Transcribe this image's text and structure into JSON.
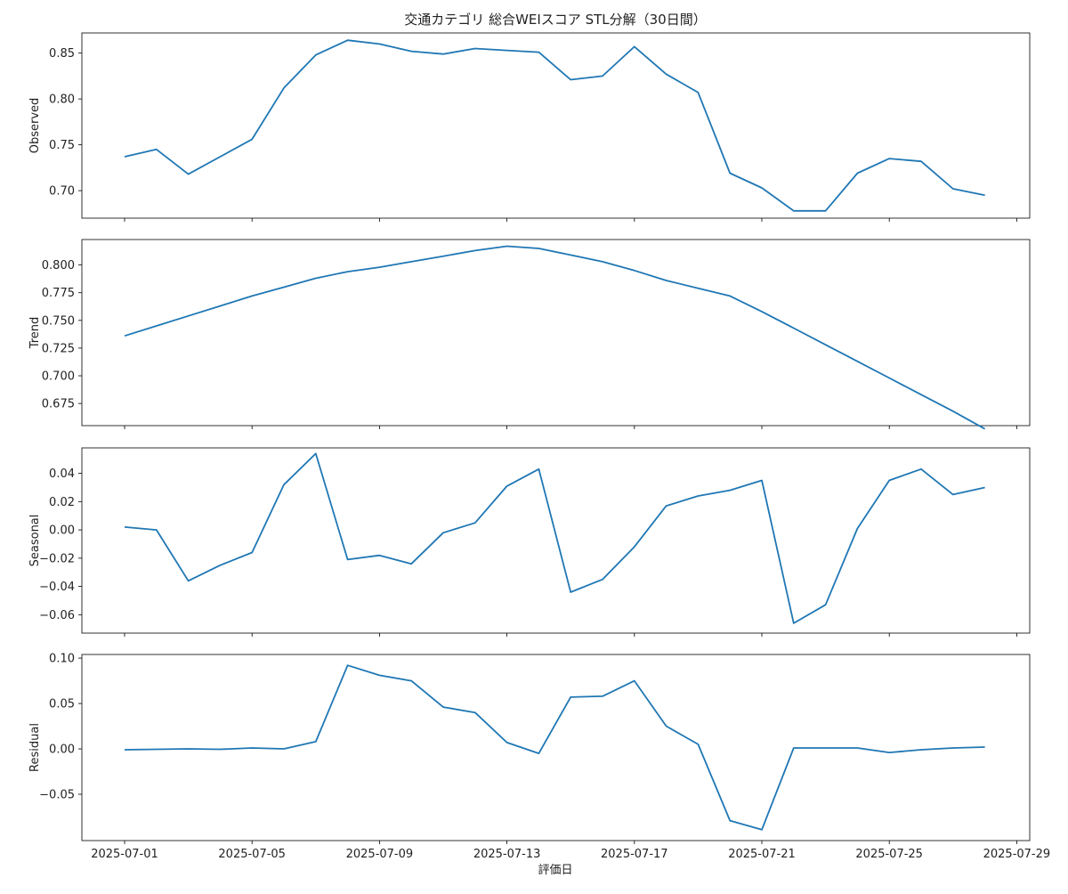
{
  "chart_data": {
    "type": "line",
    "title": "交通カテゴリ 総合WEIスコア STL分解（30日間）",
    "xlabel": "評価日",
    "series_color": "#1f77b4",
    "x_tick_labels": [
      "2025-07-01",
      "2025-07-05",
      "2025-07-09",
      "2025-07-13",
      "2025-07-17",
      "2025-07-21",
      "2025-07-25",
      "2025-07-29"
    ],
    "x": [
      "2025-07-01",
      "2025-07-02",
      "2025-07-03",
      "2025-07-04",
      "2025-07-05",
      "2025-07-06",
      "2025-07-07",
      "2025-07-08",
      "2025-07-09",
      "2025-07-10",
      "2025-07-11",
      "2025-07-12",
      "2025-07-13",
      "2025-07-14",
      "2025-07-15",
      "2025-07-16",
      "2025-07-17",
      "2025-07-18",
      "2025-07-19",
      "2025-07-20",
      "2025-07-21",
      "2025-07-22",
      "2025-07-23",
      "2025-07-24",
      "2025-07-25",
      "2025-07-26",
      "2025-07-27",
      "2025-07-28"
    ],
    "panels": [
      {
        "ylabel": "Observed",
        "ylim": [
          0.67,
          0.872
        ],
        "yticks": [
          0.7,
          0.75,
          0.8,
          0.85
        ],
        "tick_labels": [
          "0.70",
          "0.75",
          "0.80",
          "0.85"
        ],
        "values": [
          0.737,
          0.745,
          0.718,
          0.737,
          0.756,
          0.812,
          0.848,
          0.864,
          0.86,
          0.852,
          0.849,
          0.855,
          0.853,
          0.851,
          0.821,
          0.825,
          0.857,
          0.827,
          0.807,
          0.719,
          0.703,
          0.678,
          0.678,
          0.719,
          0.735,
          0.732,
          0.702,
          0.695
        ]
      },
      {
        "ylabel": "Trend",
        "ylim": [
          0.655,
          0.823
        ],
        "yticks": [
          0.675,
          0.7,
          0.725,
          0.75,
          0.775,
          0.8
        ],
        "tick_labels": [
          "0.675",
          "0.700",
          "0.725",
          "0.750",
          "0.775",
          "0.800"
        ],
        "values": [
          0.736,
          0.745,
          0.754,
          0.763,
          0.772,
          0.78,
          0.788,
          0.794,
          0.798,
          0.803,
          0.808,
          0.813,
          0.817,
          0.815,
          0.809,
          0.803,
          0.795,
          0.786,
          0.779,
          0.772,
          0.758,
          0.743,
          0.728,
          0.713,
          0.698,
          0.683,
          0.668,
          0.652
        ]
      },
      {
        "ylabel": "Seasonal",
        "ylim": [
          -0.073,
          0.058
        ],
        "yticks": [
          -0.06,
          -0.04,
          -0.02,
          0.0,
          0.02,
          0.04
        ],
        "tick_labels": [
          "−0.06",
          "−0.04",
          "−0.02",
          "0.00",
          "0.02",
          "0.04"
        ],
        "values": [
          0.002,
          0.0,
          -0.036,
          -0.025,
          -0.016,
          0.032,
          0.054,
          -0.021,
          -0.018,
          -0.024,
          -0.002,
          0.005,
          0.031,
          0.043,
          -0.044,
          -0.035,
          -0.012,
          0.017,
          0.024,
          0.028,
          0.035,
          -0.066,
          -0.053,
          0.001,
          0.035,
          0.043,
          0.025,
          0.03
        ]
      },
      {
        "ylabel": "Residual",
        "ylim": [
          -0.101,
          0.104
        ],
        "yticks": [
          -0.05,
          0.0,
          0.05,
          0.1
        ],
        "tick_labels": [
          "−0.05",
          "0.00",
          "0.05",
          "0.10"
        ],
        "values": [
          -0.001,
          -0.0005,
          0.0,
          -0.0005,
          0.001,
          0.0,
          0.008,
          0.092,
          0.081,
          0.075,
          0.046,
          0.04,
          0.007,
          -0.005,
          0.057,
          0.058,
          0.075,
          0.025,
          0.005,
          -0.079,
          -0.089,
          0.001,
          0.001,
          0.001,
          -0.004,
          -0.001,
          0.001,
          0.002
        ]
      }
    ],
    "grid": false,
    "legend": "none"
  }
}
